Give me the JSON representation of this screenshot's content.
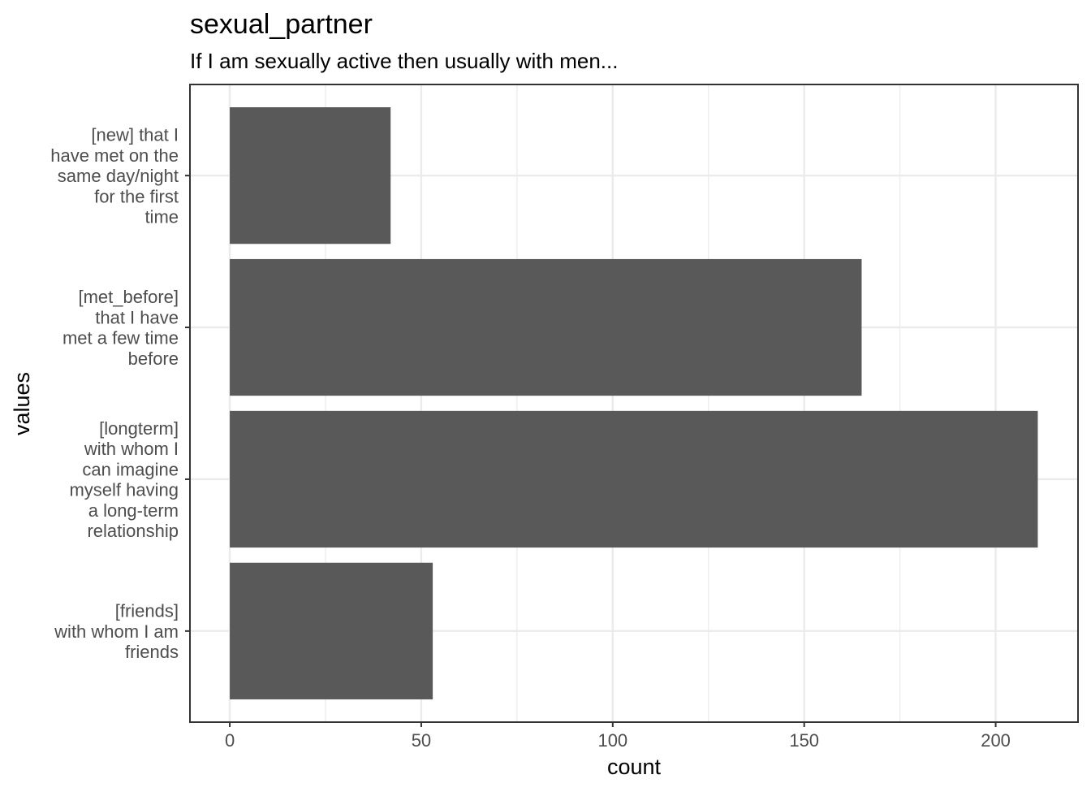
{
  "chart_data": {
    "type": "bar",
    "orientation": "horizontal",
    "title": "sexual_partner",
    "subtitle": "If I am sexually active then usually with men...",
    "xlabel": "count",
    "ylabel": "values",
    "xlim": [
      -10.4,
      221.5
    ],
    "xticks": [
      0,
      50,
      100,
      150,
      200
    ],
    "grid": true,
    "categories": [
      [
        "[new] that I",
        "have met on the",
        "same day/night",
        "for the first",
        "time"
      ],
      [
        "[met_before]",
        "that I have",
        "met a few time",
        "before"
      ],
      [
        "[longterm]",
        "with whom I",
        "can imagine",
        "myself having",
        "a long-term",
        "relationship"
      ],
      [
        "[friends]",
        "with whom I am",
        "friends"
      ]
    ],
    "values": [
      42,
      165,
      211,
      53
    ],
    "colors": {
      "bar": "#595959",
      "grid": "#ebebeb",
      "panel_border": "#333333",
      "tick_text": "#4d4d4d"
    }
  }
}
